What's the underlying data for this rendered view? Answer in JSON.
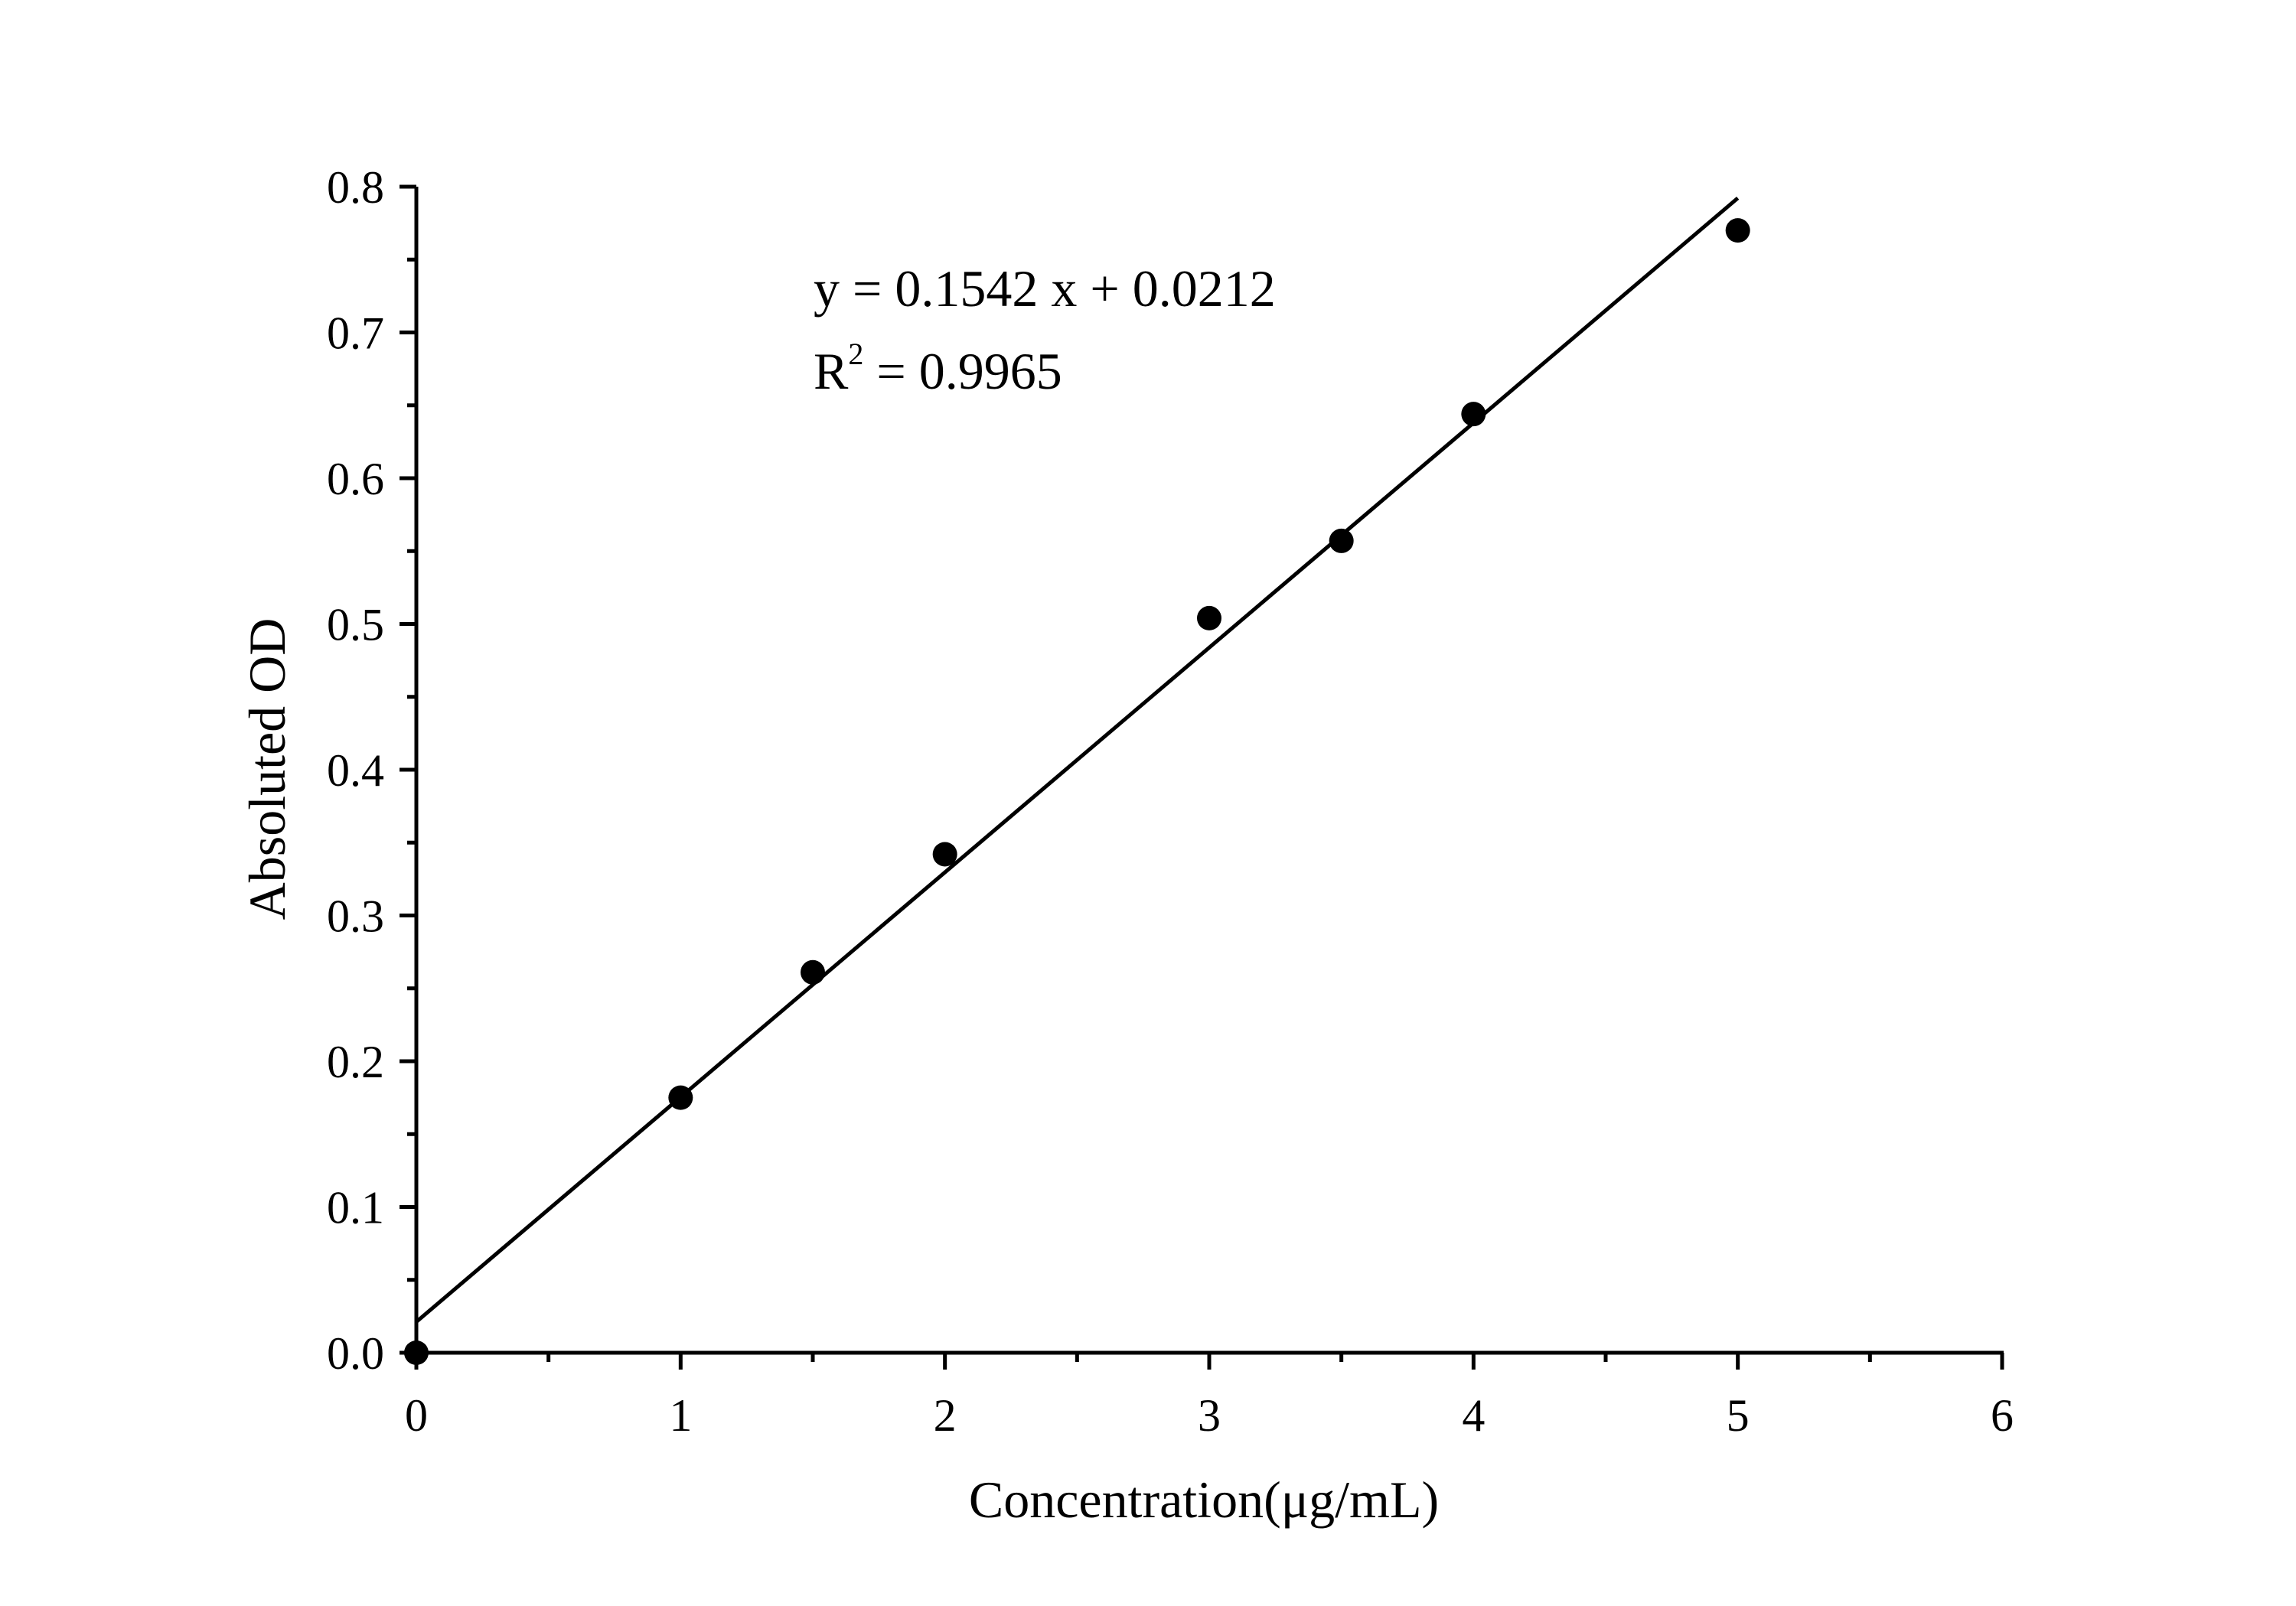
{
  "chart_data": {
    "type": "scatter",
    "xlabel": "Concentration(μg/mL)",
    "ylabel": "Absoluted OD",
    "xlim": [
      0,
      6
    ],
    "ylim": [
      0,
      0.8
    ],
    "x_ticks": [
      "0",
      "1",
      "2",
      "3",
      "4",
      "5",
      "6"
    ],
    "y_ticks": [
      "0.0",
      "0.1",
      "0.2",
      "0.3",
      "0.4",
      "0.5",
      "0.6",
      "0.7",
      "0.8"
    ],
    "grid": false,
    "legend": "none",
    "series": [
      {
        "x": [
          0,
          1,
          1.5,
          2,
          3,
          3.5,
          4,
          5
        ],
        "y": [
          0.0,
          0.175,
          0.261,
          0.342,
          0.504,
          0.557,
          0.644,
          0.77
        ],
        "marker_color": "#000000"
      }
    ],
    "fit_line": {
      "slope": 0.1542,
      "intercept": 0.0212,
      "x_range": [
        0,
        5
      ],
      "color": "#000000"
    },
    "annotations": {
      "equation": "y = 0.1542 x + 0.0212",
      "r2_prefix": "R",
      "r2_sup": "2",
      "r2_suffix": " = 0.9965"
    }
  }
}
